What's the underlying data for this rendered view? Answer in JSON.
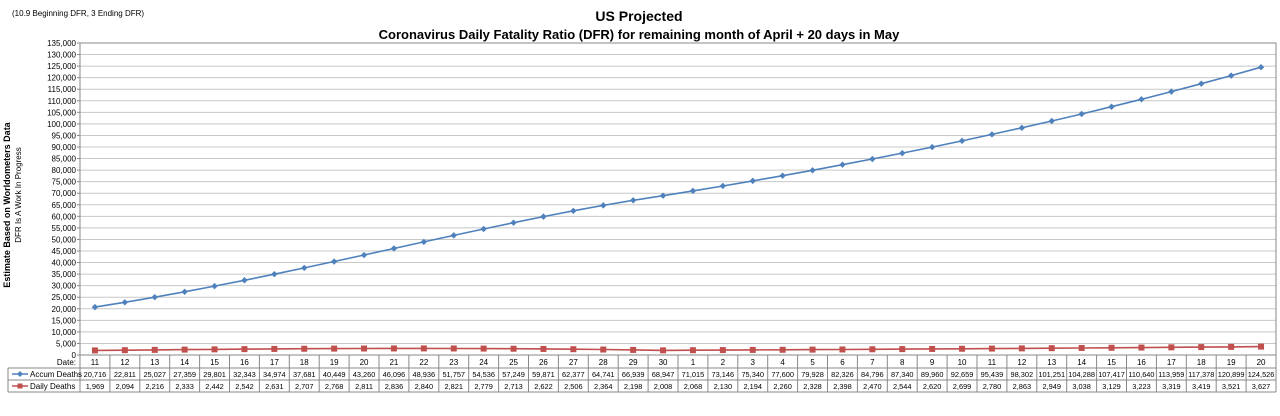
{
  "chart_data": {
    "type": "line",
    "note": "(10.9 Beginning DFR, 3 Ending DFR)",
    "title": "US Projected",
    "subtitle": "Coronavirus Daily Fatality Ratio (DFR) for remaining month of April + 20 days in May",
    "ylabel": "Estimate Based on Worldometers Data",
    "ylabel_sub": "DFR Is A Work In Progress",
    "table_header_label": "Date:",
    "ylim": [
      0,
      135000
    ],
    "ytick_step": 5000,
    "y_ticks": [
      "0",
      "5,000",
      "10,000",
      "15,000",
      "20,000",
      "25,000",
      "30,000",
      "35,000",
      "40,000",
      "45,000",
      "50,000",
      "55,000",
      "60,000",
      "65,000",
      "70,000",
      "75,000",
      "80,000",
      "85,000",
      "90,000",
      "95,000",
      "100,000",
      "105,000",
      "110,000",
      "115,000",
      "120,000",
      "125,000",
      "130,000",
      "135,000"
    ],
    "grid": true,
    "categories": [
      "11",
      "12",
      "13",
      "14",
      "15",
      "16",
      "17",
      "18",
      "19",
      "20",
      "21",
      "22",
      "23",
      "24",
      "25",
      "26",
      "27",
      "28",
      "29",
      "30",
      "1",
      "2",
      "3",
      "4",
      "5",
      "6",
      "7",
      "8",
      "9",
      "10",
      "11",
      "12",
      "13",
      "14",
      "15",
      "16",
      "17",
      "18",
      "19",
      "20"
    ],
    "series": [
      {
        "name": "Accum Deaths",
        "color": "#4F81BD",
        "marker": "diamond",
        "values": [
          20716,
          22811,
          25027,
          27359,
          29801,
          32343,
          34974,
          37681,
          40449,
          43260,
          46096,
          48936,
          51757,
          54536,
          57249,
          59871,
          62377,
          64741,
          66939,
          68947,
          71015,
          73146,
          75340,
          77600,
          79928,
          82326,
          84796,
          87340,
          89960,
          92659,
          95439,
          98302,
          101251,
          104288,
          107417,
          110640,
          113959,
          117378,
          120899,
          124526
        ],
        "labels": [
          "20,716",
          "22,811",
          "25,027",
          "27,359",
          "29,801",
          "32,343",
          "34,974",
          "37,681",
          "40,449",
          "43,260",
          "46,096",
          "48,936",
          "51,757",
          "54,536",
          "57,249",
          "59,871",
          "62,377",
          "64,741",
          "66,939",
          "68,947",
          "71,015",
          "73,146",
          "75,340",
          "77,600",
          "79,928",
          "82,326",
          "84,796",
          "87,340",
          "89,960",
          "92,659",
          "95,439",
          "98,302",
          "101,251",
          "104,288",
          "107,417",
          "110,640",
          "113,959",
          "117,378",
          "120,899",
          "124,526"
        ]
      },
      {
        "name": "Daily Deaths",
        "color": "#C0504D",
        "marker": "square",
        "values": [
          1969,
          2094,
          2216,
          2333,
          2442,
          2542,
          2631,
          2707,
          2768,
          2811,
          2836,
          2840,
          2821,
          2779,
          2713,
          2622,
          2506,
          2364,
          2198,
          2008,
          2068,
          2130,
          2194,
          2260,
          2328,
          2398,
          2470,
          2544,
          2620,
          2699,
          2780,
          2863,
          2949,
          3038,
          3129,
          3223,
          3319,
          3419,
          3521,
          3627
        ],
        "labels": [
          "1,969",
          "2,094",
          "2,216",
          "2,333",
          "2,442",
          "2,542",
          "2,631",
          "2,707",
          "2,768",
          "2,811",
          "2,836",
          "2,840",
          "2,821",
          "2,779",
          "2,713",
          "2,622",
          "2,506",
          "2,364",
          "2,198",
          "2,008",
          "2,068",
          "2,130",
          "2,194",
          "2,260",
          "2,328",
          "2,398",
          "2,470",
          "2,544",
          "2,620",
          "2,699",
          "2,780",
          "2,863",
          "2,949",
          "3,038",
          "3,129",
          "3,223",
          "3,319",
          "3,419",
          "3,521",
          "3,627"
        ]
      }
    ]
  }
}
